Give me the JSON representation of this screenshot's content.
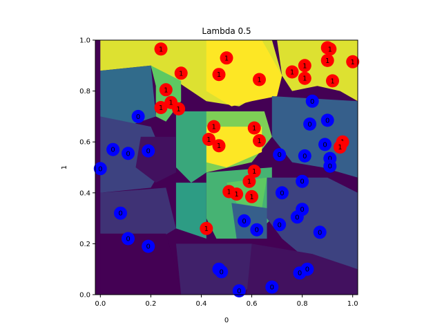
{
  "chart_data": {
    "type": "scatter",
    "title": "Lambda 0.5",
    "xlabel": "0",
    "ylabel": "1",
    "xlim": [
      -0.02,
      1.02
    ],
    "ylim": [
      0.0,
      1.0
    ],
    "xticks": [
      "0.0",
      "0.2",
      "0.4",
      "0.6",
      "0.8",
      "1.0"
    ],
    "yticks": [
      "0.0",
      "0.2",
      "0.4",
      "0.6",
      "0.8",
      "1.0"
    ],
    "grid": false,
    "legend": "none",
    "background_regions": [
      {
        "level": 0.95,
        "polygon": [
          [
            0.0,
            1.0
          ],
          [
            0.68,
            1.0
          ],
          [
            0.72,
            0.86
          ],
          [
            0.62,
            0.78
          ],
          [
            0.55,
            0.74
          ],
          [
            0.42,
            0.76
          ],
          [
            0.3,
            0.84
          ],
          [
            0.2,
            0.9
          ],
          [
            0.0,
            0.88
          ]
        ]
      },
      {
        "level": 1.0,
        "polygon": [
          [
            0.42,
            1.0
          ],
          [
            0.64,
            1.0
          ],
          [
            0.72,
            0.86
          ],
          [
            0.7,
            0.78
          ],
          [
            0.6,
            0.76
          ],
          [
            0.52,
            0.74
          ],
          [
            0.42,
            0.8
          ]
        ]
      },
      {
        "level": 0.95,
        "polygon": [
          [
            0.7,
            1.0
          ],
          [
            1.02,
            1.0
          ],
          [
            1.02,
            0.76
          ],
          [
            0.95,
            0.8
          ],
          [
            0.86,
            0.82
          ],
          [
            0.76,
            0.8
          ],
          [
            0.72,
            0.86
          ]
        ]
      },
      {
        "level": 0.75,
        "polygon": [
          [
            0.2,
            0.9
          ],
          [
            0.32,
            0.84
          ],
          [
            0.32,
            0.76
          ],
          [
            0.26,
            0.68
          ],
          [
            0.22,
            0.7
          ],
          [
            0.22,
            0.82
          ]
        ]
      },
      {
        "level": 0.8,
        "polygon": [
          [
            0.4,
            0.72
          ],
          [
            0.65,
            0.72
          ],
          [
            0.68,
            0.62
          ],
          [
            0.6,
            0.52
          ],
          [
            0.42,
            0.48
          ],
          [
            0.38,
            0.56
          ]
        ]
      },
      {
        "level": 1.0,
        "polygon": [
          [
            0.42,
            0.66
          ],
          [
            0.64,
            0.66
          ],
          [
            0.64,
            0.56
          ],
          [
            0.5,
            0.5
          ],
          [
            0.42,
            0.52
          ]
        ]
      },
      {
        "level": 0.6,
        "polygon": [
          [
            0.3,
            0.72
          ],
          [
            0.42,
            0.72
          ],
          [
            0.42,
            0.48
          ],
          [
            0.36,
            0.44
          ],
          [
            0.3,
            0.5
          ]
        ]
      },
      {
        "level": 0.65,
        "polygon": [
          [
            0.42,
            0.48
          ],
          [
            0.68,
            0.5
          ],
          [
            0.68,
            0.3
          ],
          [
            0.6,
            0.22
          ],
          [
            0.46,
            0.22
          ],
          [
            0.42,
            0.3
          ]
        ]
      },
      {
        "level": 0.75,
        "polygon": [
          [
            0.5,
            0.44
          ],
          [
            0.66,
            0.46
          ],
          [
            0.64,
            0.34
          ],
          [
            0.54,
            0.36
          ]
        ]
      },
      {
        "level": 0.55,
        "polygon": [
          [
            0.3,
            0.44
          ],
          [
            0.42,
            0.44
          ],
          [
            0.42,
            0.22
          ],
          [
            0.3,
            0.26
          ]
        ]
      },
      {
        "level": 0.35,
        "polygon": [
          [
            0.0,
            0.88
          ],
          [
            0.2,
            0.9
          ],
          [
            0.22,
            0.7
          ],
          [
            0.1,
            0.66
          ],
          [
            0.0,
            0.7
          ]
        ]
      },
      {
        "level": 0.3,
        "polygon": [
          [
            0.68,
            0.78
          ],
          [
            1.02,
            0.76
          ],
          [
            1.02,
            0.46
          ],
          [
            0.88,
            0.5
          ],
          [
            0.76,
            0.52
          ],
          [
            0.68,
            0.62
          ]
        ]
      },
      {
        "level": 0.2,
        "polygon": [
          [
            0.0,
            0.7
          ],
          [
            0.2,
            0.66
          ],
          [
            0.26,
            0.52
          ],
          [
            0.2,
            0.42
          ],
          [
            0.0,
            0.4
          ]
        ]
      },
      {
        "level": 0.05,
        "polygon": [
          [
            0.16,
            0.62
          ],
          [
            0.3,
            0.62
          ],
          [
            0.3,
            0.48
          ],
          [
            0.22,
            0.44
          ],
          [
            0.14,
            0.5
          ]
        ]
      },
      {
        "level": 0.15,
        "polygon": [
          [
            0.0,
            0.4
          ],
          [
            0.26,
            0.42
          ],
          [
            0.3,
            0.26
          ],
          [
            0.2,
            0.2
          ],
          [
            0.0,
            0.24
          ]
        ]
      },
      {
        "level": 0.0,
        "polygon": [
          [
            0.0,
            0.24
          ],
          [
            0.26,
            0.24
          ],
          [
            0.3,
            0.1
          ],
          [
            0.32,
            0.0
          ],
          [
            0.0,
            0.0
          ]
        ]
      },
      {
        "level": 0.1,
        "polygon": [
          [
            0.3,
            0.2
          ],
          [
            0.6,
            0.2
          ],
          [
            0.62,
            0.06
          ],
          [
            0.56,
            0.0
          ],
          [
            0.32,
            0.0
          ]
        ]
      },
      {
        "level": 0.2,
        "polygon": [
          [
            0.66,
            0.46
          ],
          [
            0.9,
            0.46
          ],
          [
            1.02,
            0.4
          ],
          [
            1.02,
            0.1
          ],
          [
            0.84,
            0.12
          ],
          [
            0.72,
            0.22
          ],
          [
            0.66,
            0.3
          ]
        ]
      },
      {
        "level": 0.05,
        "polygon": [
          [
            0.6,
            0.2
          ],
          [
            0.84,
            0.16
          ],
          [
            1.02,
            0.1
          ],
          [
            1.02,
            0.0
          ],
          [
            0.58,
            0.0
          ]
        ]
      },
      {
        "level": 0.3,
        "polygon": [
          [
            0.52,
            0.36
          ],
          [
            0.66,
            0.34
          ],
          [
            0.66,
            0.22
          ],
          [
            0.54,
            0.22
          ]
        ]
      }
    ],
    "series": [
      {
        "name": "1",
        "color": "#ff0000",
        "points": [
          [
            0.24,
            0.965
          ],
          [
            0.32,
            0.87
          ],
          [
            0.26,
            0.805
          ],
          [
            0.28,
            0.755
          ],
          [
            0.24,
            0.735
          ],
          [
            0.31,
            0.73
          ],
          [
            0.5,
            0.93
          ],
          [
            0.47,
            0.865
          ],
          [
            0.63,
            0.845
          ],
          [
            0.76,
            0.875
          ],
          [
            0.81,
            0.9
          ],
          [
            0.81,
            0.85
          ],
          [
            0.9,
            0.97
          ],
          [
            0.9,
            0.92
          ],
          [
            0.91,
            0.965
          ],
          [
            1.0,
            0.915
          ],
          [
            0.92,
            0.84
          ],
          [
            0.45,
            0.66
          ],
          [
            0.43,
            0.61
          ],
          [
            0.47,
            0.585
          ],
          [
            0.61,
            0.655
          ],
          [
            0.63,
            0.605
          ],
          [
            0.96,
            0.6
          ],
          [
            0.95,
            0.58
          ],
          [
            0.61,
            0.485
          ],
          [
            0.59,
            0.445
          ],
          [
            0.51,
            0.405
          ],
          [
            0.54,
            0.395
          ],
          [
            0.6,
            0.385
          ],
          [
            0.42,
            0.26
          ]
        ]
      },
      {
        "name": "0",
        "color": "#0000ff",
        "points": [
          [
            0.15,
            0.7
          ],
          [
            0.05,
            0.57
          ],
          [
            0.11,
            0.555
          ],
          [
            0.19,
            0.565
          ],
          [
            0.0,
            0.495
          ],
          [
            0.08,
            0.32
          ],
          [
            0.11,
            0.22
          ],
          [
            0.19,
            0.19
          ],
          [
            0.84,
            0.76
          ],
          [
            0.9,
            0.685
          ],
          [
            0.83,
            0.67
          ],
          [
            0.71,
            0.55
          ],
          [
            0.81,
            0.545
          ],
          [
            0.89,
            0.59
          ],
          [
            0.91,
            0.535
          ],
          [
            0.91,
            0.505
          ],
          [
            0.8,
            0.445
          ],
          [
            0.72,
            0.4
          ],
          [
            0.8,
            0.335
          ],
          [
            0.78,
            0.305
          ],
          [
            0.57,
            0.29
          ],
          [
            0.62,
            0.255
          ],
          [
            0.71,
            0.275
          ],
          [
            0.87,
            0.245
          ],
          [
            0.47,
            0.1
          ],
          [
            0.48,
            0.09
          ],
          [
            0.82,
            0.1
          ],
          [
            0.79,
            0.085
          ],
          [
            0.55,
            0.015
          ],
          [
            0.68,
            0.03
          ]
        ]
      }
    ]
  }
}
